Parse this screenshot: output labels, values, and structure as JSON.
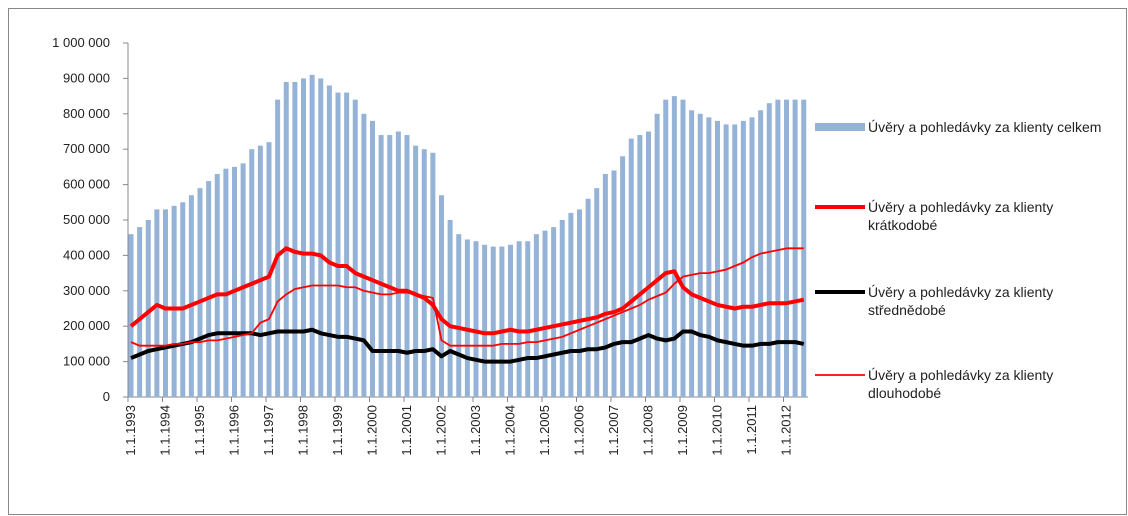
{
  "chart_data": {
    "type": "bar_line",
    "categories": [
      "1.1.1993",
      null,
      null,
      null,
      "1.1.1994",
      null,
      null,
      null,
      "1.1.1995",
      null,
      null,
      null,
      "1.1.1996",
      null,
      null,
      null,
      "1.1.1997",
      null,
      null,
      null,
      "1.1.1998",
      null,
      null,
      null,
      "1.1.1999",
      null,
      null,
      null,
      "1.1.2000",
      null,
      null,
      null,
      "1.1.2001",
      null,
      null,
      null,
      "1.1.2002",
      null,
      null,
      null,
      "1.1.2003",
      null,
      null,
      null,
      "1.1.2004",
      null,
      null,
      null,
      "1.1.2005",
      null,
      null,
      null,
      "1.1.2006",
      null,
      null,
      null,
      "1.1.2007",
      null,
      null,
      null,
      "1.1.2008",
      null,
      null,
      null,
      "1.1.2009",
      null,
      null,
      null,
      "1.1.2010",
      null,
      null,
      null,
      "1.1.2011",
      null,
      null,
      null,
      "1.1.2012",
      null,
      null
    ],
    "ylim": [
      0,
      1000000
    ],
    "yticks": [
      0,
      {
        "value": 100000,
        "label": "100 000"
      },
      {
        "value": 200000,
        "label": "200 000"
      },
      {
        "value": 300000,
        "label": "300 000"
      },
      {
        "value": 400000,
        "label": "400 000"
      },
      {
        "value": 500000,
        "label": "500 000"
      },
      {
        "value": 600000,
        "label": "600 000"
      },
      {
        "value": 700000,
        "label": "700 000"
      },
      {
        "value": 800000,
        "label": "800 000"
      },
      {
        "value": 900000,
        "label": "900 000"
      },
      {
        "value": 1000000,
        "label": "1 000 000"
      }
    ],
    "legend": "right",
    "series": [
      {
        "name": "Úvěry a pohledávky za klienty celkem",
        "type": "bar",
        "color": "#95b3d7",
        "values": [
          460000,
          480000,
          500000,
          530000,
          530000,
          540000,
          550000,
          570000,
          590000,
          610000,
          630000,
          645000,
          650000,
          660000,
          700000,
          710000,
          720000,
          840000,
          890000,
          890000,
          900000,
          910000,
          900000,
          880000,
          860000,
          860000,
          840000,
          800000,
          780000,
          740000,
          740000,
          750000,
          740000,
          710000,
          700000,
          690000,
          570000,
          500000,
          460000,
          445000,
          440000,
          430000,
          425000,
          425000,
          430000,
          440000,
          440000,
          460000,
          470000,
          480000,
          500000,
          520000,
          530000,
          560000,
          590000,
          630000,
          640000,
          680000,
          730000,
          740000,
          750000,
          800000,
          840000,
          850000,
          840000,
          810000,
          800000,
          790000,
          780000,
          770000,
          770000,
          780000,
          790000,
          810000,
          830000,
          840000,
          840000,
          840000,
          840000
        ]
      },
      {
        "name": "Úvěry a pohledávky za klienty krátkodobé",
        "type": "line",
        "color": "#ff0000",
        "width": 4,
        "values": [
          200000,
          220000,
          240000,
          260000,
          250000,
          250000,
          250000,
          260000,
          270000,
          280000,
          290000,
          290000,
          300000,
          310000,
          320000,
          330000,
          340000,
          400000,
          420000,
          410000,
          405000,
          405000,
          400000,
          380000,
          370000,
          370000,
          350000,
          340000,
          330000,
          320000,
          310000,
          300000,
          300000,
          290000,
          280000,
          260000,
          220000,
          200000,
          195000,
          190000,
          185000,
          180000,
          180000,
          185000,
          190000,
          185000,
          185000,
          190000,
          195000,
          200000,
          205000,
          210000,
          215000,
          220000,
          225000,
          235000,
          240000,
          250000,
          270000,
          290000,
          310000,
          330000,
          350000,
          355000,
          310000,
          290000,
          280000,
          270000,
          260000,
          255000,
          250000,
          255000,
          255000,
          260000,
          265000,
          265000,
          265000,
          270000,
          275000
        ]
      },
      {
        "name": "Úvěry a pohledávky za klienty střednědobé",
        "type": "line",
        "color": "#000000",
        "width": 4,
        "values": [
          110000,
          120000,
          130000,
          135000,
          140000,
          145000,
          150000,
          155000,
          165000,
          175000,
          180000,
          180000,
          180000,
          180000,
          180000,
          175000,
          180000,
          185000,
          185000,
          185000,
          185000,
          190000,
          180000,
          175000,
          170000,
          170000,
          165000,
          160000,
          130000,
          130000,
          130000,
          130000,
          125000,
          130000,
          130000,
          135000,
          115000,
          130000,
          120000,
          110000,
          105000,
          100000,
          100000,
          100000,
          100000,
          105000,
          110000,
          110000,
          115000,
          120000,
          125000,
          130000,
          130000,
          135000,
          135000,
          140000,
          150000,
          155000,
          155000,
          165000,
          175000,
          165000,
          160000,
          165000,
          185000,
          185000,
          175000,
          170000,
          160000,
          155000,
          150000,
          145000,
          145000,
          150000,
          150000,
          155000,
          155000,
          155000,
          150000
        ]
      },
      {
        "name": "Úvěry a pohledávky za klienty dlouhodobé",
        "type": "line",
        "color": "#ff0000",
        "width": 1.8,
        "values": [
          155000,
          145000,
          145000,
          145000,
          145000,
          150000,
          150000,
          155000,
          155000,
          160000,
          160000,
          165000,
          170000,
          175000,
          180000,
          210000,
          220000,
          270000,
          290000,
          305000,
          310000,
          315000,
          315000,
          315000,
          315000,
          310000,
          310000,
          300000,
          295000,
          290000,
          290000,
          295000,
          295000,
          290000,
          285000,
          280000,
          160000,
          145000,
          145000,
          145000,
          145000,
          145000,
          145000,
          150000,
          150000,
          150000,
          155000,
          155000,
          160000,
          165000,
          170000,
          180000,
          190000,
          200000,
          210000,
          220000,
          230000,
          240000,
          250000,
          260000,
          275000,
          285000,
          295000,
          320000,
          340000,
          345000,
          350000,
          350000,
          355000,
          360000,
          370000,
          380000,
          395000,
          405000,
          410000,
          415000,
          420000,
          420000,
          420000
        ]
      }
    ]
  }
}
